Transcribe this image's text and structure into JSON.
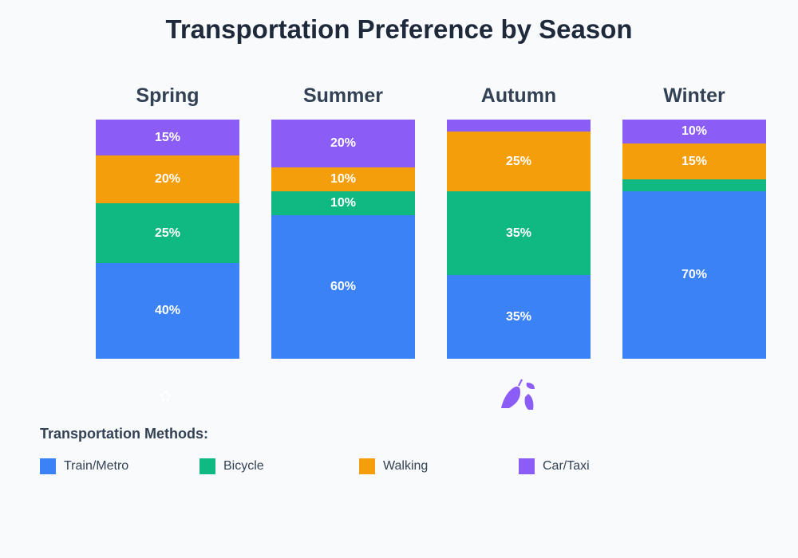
{
  "chart_data": {
    "type": "bar",
    "stacked": true,
    "title": "Transportation Preference by Season",
    "categories": [
      "Spring",
      "Summer",
      "Autumn",
      "Winter"
    ],
    "series": [
      {
        "name": "Train/Metro",
        "color": "#3b82f6",
        "values": [
          40,
          60,
          35,
          70
        ]
      },
      {
        "name": "Bicycle",
        "color": "#10b981",
        "values": [
          25,
          10,
          35,
          5
        ]
      },
      {
        "name": "Walking",
        "color": "#f59e0b",
        "values": [
          20,
          10,
          25,
          15
        ]
      },
      {
        "name": "Car/Taxi",
        "color": "#8b5cf6",
        "values": [
          15,
          20,
          5,
          10
        ]
      }
    ],
    "ylim": [
      0,
      100
    ],
    "legend_title": "Transportation Methods:",
    "legend_position": "bottom",
    "icons": {
      "Spring": "flower-icon",
      "Autumn": "fallen-leaves-icon"
    }
  }
}
